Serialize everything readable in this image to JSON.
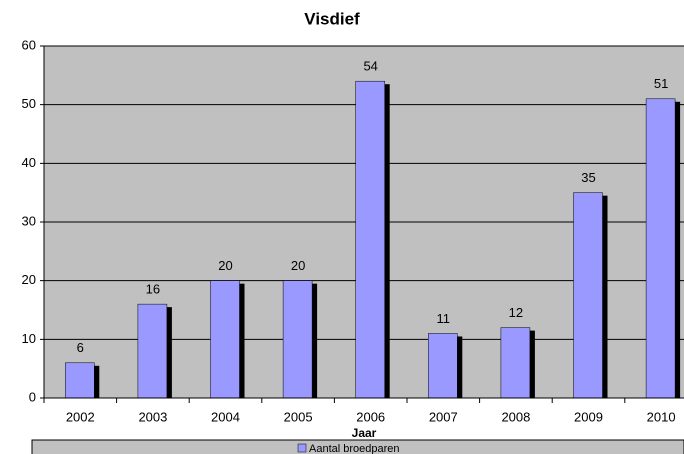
{
  "chart_data": {
    "type": "bar",
    "title": "Visdief",
    "x_label": "Jaar",
    "categories": [
      "2002",
      "2003",
      "2004",
      "2005",
      "2006",
      "2007",
      "2008",
      "2009",
      "2010"
    ],
    "series": [
      {
        "name": "Aantal broedparen",
        "color": "#9999ff",
        "values": [
          6,
          16,
          20,
          20,
          54,
          11,
          12,
          35,
          51
        ]
      }
    ],
    "ylim": [
      0,
      60
    ],
    "yticks": [
      0,
      10,
      20,
      30,
      40,
      50,
      60
    ],
    "grid": true,
    "legend": "bottom"
  }
}
